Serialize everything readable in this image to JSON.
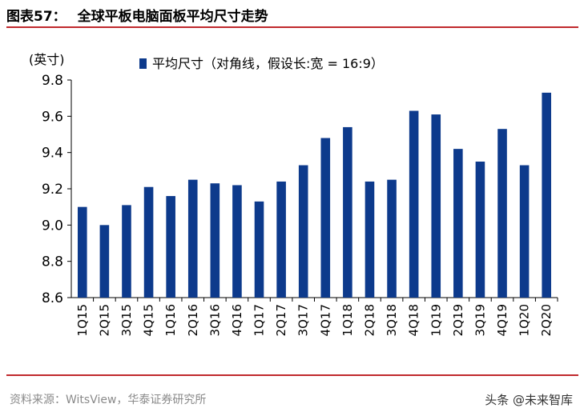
{
  "figure": {
    "number": "图表57：",
    "title": "全球平板电脑面板平均尺寸走势"
  },
  "source": "资料来源：WitsView，华泰证券研究所",
  "watermark": "头条 @未来智库",
  "colors": {
    "bar": "#0d3a8c",
    "rule": "#c0282d"
  },
  "chart_data": {
    "type": "bar",
    "unit_label": "(英寸)",
    "legend": [
      {
        "name": "平均尺寸（对角线，假设长:宽 = 16:9）",
        "color": "#0d3a8c"
      }
    ],
    "legend_position": "top",
    "grid": false,
    "ylim": [
      8.6,
      9.8
    ],
    "yticks": [
      "9.8",
      "9.6",
      "9.4",
      "9.2",
      "9.0",
      "8.8",
      "8.6"
    ],
    "categories": [
      "1Q15",
      "2Q15",
      "3Q15",
      "4Q15",
      "1Q16",
      "2Q16",
      "3Q16",
      "4Q16",
      "1Q17",
      "2Q17",
      "3Q17",
      "4Q17",
      "1Q18",
      "2Q18",
      "3Q18",
      "4Q18",
      "1Q19",
      "2Q19",
      "3Q19",
      "4Q19",
      "1Q20",
      "2Q20"
    ],
    "series": [
      {
        "name": "平均尺寸（对角线，假设长:宽 = 16:9）",
        "values": [
          9.1,
          9.0,
          9.11,
          9.21,
          9.16,
          9.25,
          9.23,
          9.22,
          9.13,
          9.24,
          9.33,
          9.48,
          9.54,
          9.24,
          9.25,
          9.63,
          9.61,
          9.42,
          9.35,
          9.53,
          9.33,
          9.73
        ]
      }
    ]
  }
}
